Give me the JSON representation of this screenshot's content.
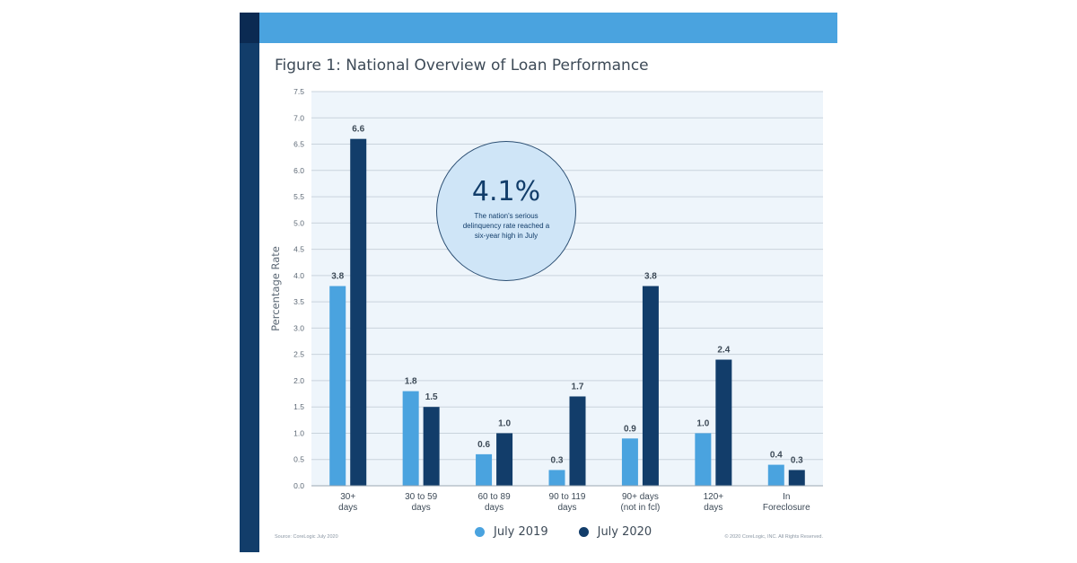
{
  "colors": {
    "accent_dark": "#123d6a",
    "accent_light": "#4aa3df",
    "plot_bg": "#eef5fb",
    "grid": "#c9d3dc"
  },
  "footer": {
    "source": "Source: CoreLogic July 2020",
    "copyright": "© 2020 CoreLogic, INC. All Rights Reserved."
  },
  "callout": {
    "value": "4.1%",
    "text": "The nation's serious delinquency rate reached a six-year high in July"
  },
  "chart_data": {
    "type": "bar",
    "title": "Figure 1: National Overview of Loan Performance",
    "ylabel": "Percentage Rate",
    "xlabel": "",
    "ylim": [
      0,
      7.5
    ],
    "yticks": [
      "0.0",
      "0.5",
      "1.0",
      "1.5",
      "2.0",
      "2.5",
      "3.0",
      "3.5",
      "4.0",
      "4.5",
      "5.0",
      "5.5",
      "6.0",
      "6.5",
      "7.0",
      "7.5"
    ],
    "grid": true,
    "legend_position": "bottom-center",
    "categories": [
      [
        "30+",
        "days"
      ],
      [
        "30 to 59",
        "days"
      ],
      [
        "60 to 89",
        "days"
      ],
      [
        "90 to 119",
        "days"
      ],
      [
        "90+ days",
        "(not in fcl)"
      ],
      [
        "120+",
        "days"
      ],
      [
        "In",
        "Foreclosure"
      ]
    ],
    "series": [
      {
        "name": "July 2019",
        "color": "#4aa3df",
        "values": [
          3.8,
          1.8,
          0.6,
          0.3,
          0.9,
          1.0,
          0.4
        ],
        "labels": [
          "3.8",
          "1.8",
          "0.6",
          "0.3",
          "0.9",
          "1.0",
          "0.4"
        ]
      },
      {
        "name": "July 2020",
        "color": "#123d6a",
        "values": [
          6.6,
          1.5,
          1.0,
          1.7,
          3.8,
          2.4,
          0.3
        ],
        "labels": [
          "6.6",
          "1.5",
          "1.0",
          "1.7",
          "3.8",
          "2.4",
          "0.3"
        ]
      }
    ]
  }
}
